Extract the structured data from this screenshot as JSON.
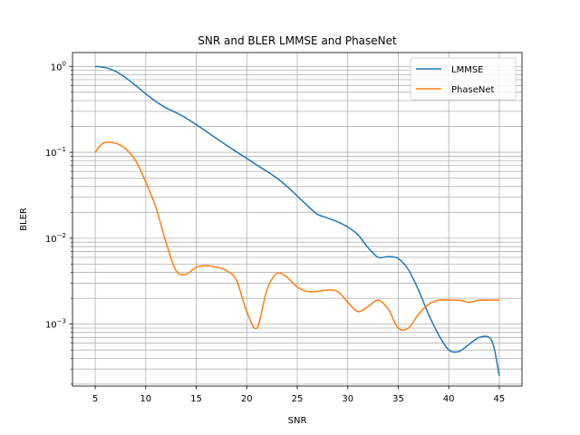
{
  "chart_data": {
    "type": "line",
    "title": "SNR and BLER LMMSE and PhaseNet",
    "xlabel": "SNR",
    "ylabel": "BLER",
    "xlim": [
      2.75,
      47.25
    ],
    "ylim": [
      0.00019,
      1.45
    ],
    "yscale": "log",
    "grid": true,
    "legend_position": "upper-right",
    "x_ticks": [
      5,
      10,
      15,
      20,
      25,
      30,
      35,
      40,
      45
    ],
    "x_tick_labels": [
      "5",
      "10",
      "15",
      "20",
      "25",
      "30",
      "35",
      "40",
      "45"
    ],
    "y_ticks": [
      0.001,
      0.01,
      0.1,
      1
    ],
    "y_tick_labels": [
      {
        "base": "10",
        "exp": "−3"
      },
      {
        "base": "10",
        "exp": "−2"
      },
      {
        "base": "10",
        "exp": "−1"
      },
      {
        "base": "10",
        "exp": "0"
      }
    ],
    "series": [
      {
        "name": "LMMSE",
        "color": "#1f77b4",
        "points": [
          [
            5,
            1.0
          ],
          [
            6,
            0.97
          ],
          [
            7,
            0.88
          ],
          [
            8,
            0.74
          ],
          [
            9,
            0.6
          ],
          [
            10,
            0.48
          ],
          [
            11,
            0.39
          ],
          [
            12,
            0.33
          ],
          [
            13,
            0.29
          ],
          [
            14,
            0.25
          ],
          [
            15,
            0.21
          ],
          [
            16,
            0.175
          ],
          [
            17,
            0.145
          ],
          [
            18,
            0.121
          ],
          [
            19,
            0.101
          ],
          [
            20,
            0.085
          ],
          [
            21,
            0.071
          ],
          [
            22,
            0.06
          ],
          [
            23,
            0.05
          ],
          [
            24,
            0.04
          ],
          [
            25,
            0.031
          ],
          [
            26,
            0.024
          ],
          [
            27,
            0.019
          ],
          [
            28,
            0.0172
          ],
          [
            29,
            0.0155
          ],
          [
            30,
            0.0135
          ],
          [
            31,
            0.011
          ],
          [
            32,
            0.0078
          ],
          [
            33,
            0.006
          ],
          [
            34,
            0.0061
          ],
          [
            35,
            0.0058
          ],
          [
            36,
            0.0043
          ],
          [
            37,
            0.0025
          ],
          [
            38,
            0.0013
          ],
          [
            39,
            0.00075
          ],
          [
            40,
            0.0005
          ],
          [
            41,
            0.00048
          ],
          [
            42,
            0.00058
          ],
          [
            43,
            0.0007
          ],
          [
            44,
            0.0007
          ],
          [
            44.5,
            0.00052
          ],
          [
            45,
            0.00025
          ]
        ]
      },
      {
        "name": "PhaseNet",
        "color": "#ff7f0e",
        "points": [
          [
            5,
            0.1
          ],
          [
            5.5,
            0.12
          ],
          [
            6,
            0.13
          ],
          [
            7,
            0.128
          ],
          [
            8,
            0.11
          ],
          [
            9,
            0.08
          ],
          [
            10,
            0.045
          ],
          [
            11,
            0.023
          ],
          [
            12,
            0.009
          ],
          [
            13,
            0.0042
          ],
          [
            14,
            0.0038
          ],
          [
            15,
            0.0046
          ],
          [
            16,
            0.0048
          ],
          [
            17,
            0.0046
          ],
          [
            18,
            0.0042
          ],
          [
            19,
            0.0032
          ],
          [
            20,
            0.0014
          ],
          [
            21,
            0.0009
          ],
          [
            22,
            0.0025
          ],
          [
            23,
            0.0039
          ],
          [
            24,
            0.0035
          ],
          [
            25,
            0.0027
          ],
          [
            26,
            0.0024
          ],
          [
            27,
            0.0024
          ],
          [
            28,
            0.0025
          ],
          [
            29,
            0.0024
          ],
          [
            30,
            0.0018
          ],
          [
            31,
            0.0014
          ],
          [
            32,
            0.0016
          ],
          [
            33,
            0.0019
          ],
          [
            34,
            0.0015
          ],
          [
            35,
            0.0009
          ],
          [
            36,
            0.0009
          ],
          [
            37,
            0.0013
          ],
          [
            38,
            0.0017
          ],
          [
            39,
            0.0019
          ],
          [
            40,
            0.0019
          ],
          [
            41,
            0.0019
          ],
          [
            42,
            0.0018
          ],
          [
            43,
            0.0019
          ],
          [
            45,
            0.0019
          ]
        ]
      }
    ]
  }
}
